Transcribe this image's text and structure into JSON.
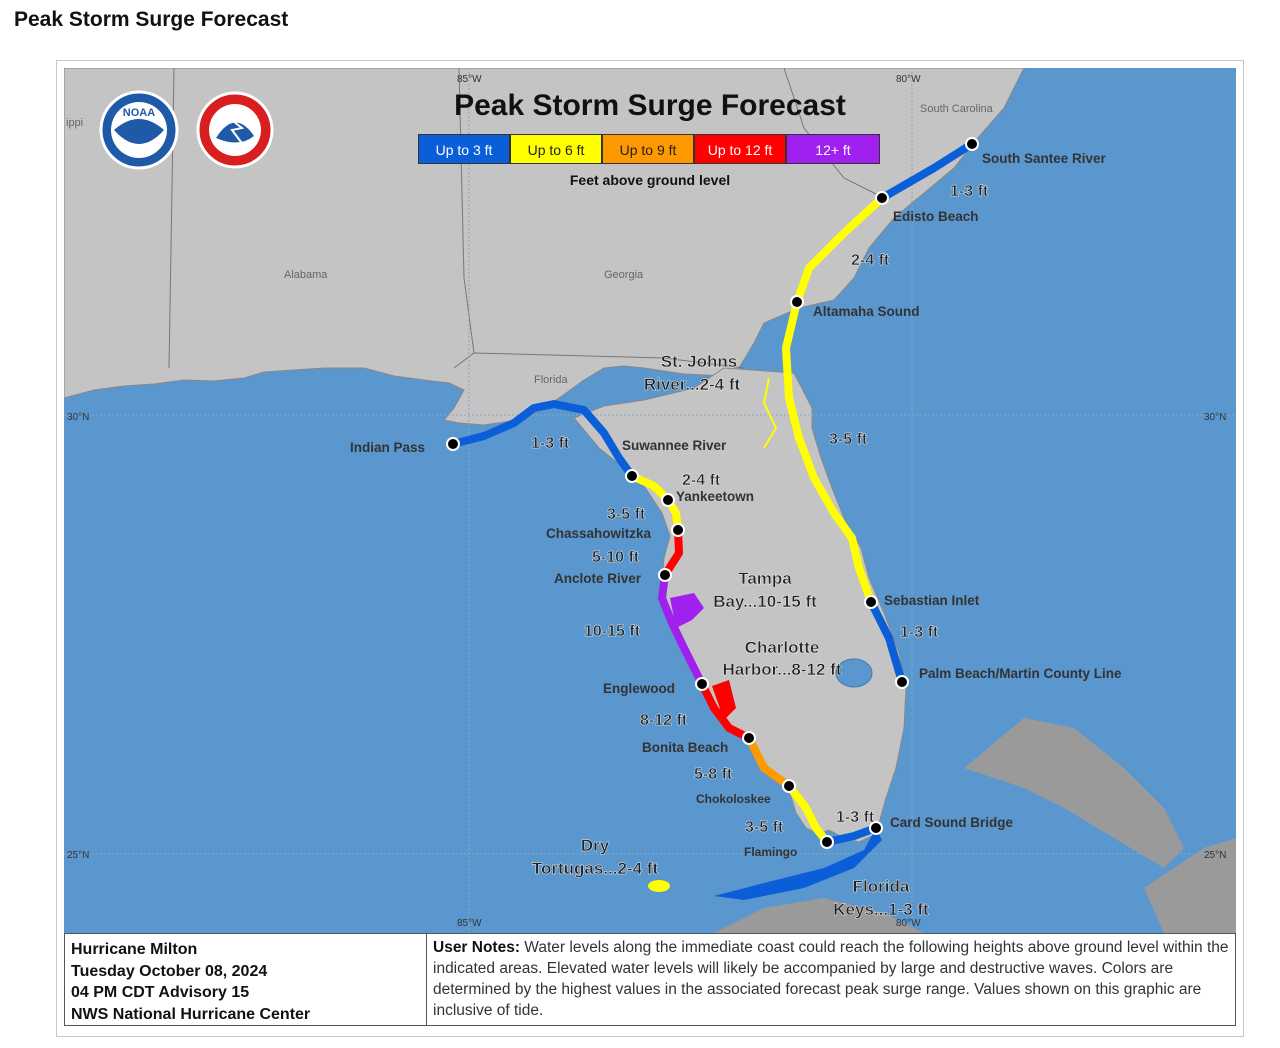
{
  "page_title": "Peak Storm Surge Forecast",
  "map": {
    "title": "Peak Storm Surge Forecast",
    "logos": [
      "noaa-logo",
      "nws-logo"
    ],
    "logo_text": {
      "noaa": "NOAA",
      "nws": "NATIONAL WEATHER SERVICE"
    },
    "legend": {
      "items": [
        {
          "label": "Up to 3 ft",
          "color": "#0a5fd9"
        },
        {
          "label": "Up to 6 ft",
          "color": "#ffff00"
        },
        {
          "label": "Up to 9 ft",
          "color": "#ff9900"
        },
        {
          "label": "Up to 12 ft",
          "color": "#ff0000"
        },
        {
          "label": "12+ ft",
          "color": "#a020f0"
        }
      ],
      "caption": "Feet above ground level"
    },
    "grid_labels": [
      "85°W",
      "80°W",
      "30°N",
      "30°N",
      "25°N",
      "25°N",
      "85°W",
      "80°W"
    ],
    "region_labels": [
      "Alabama",
      "Georgia",
      "Florida",
      "South Carolina",
      "ippi"
    ],
    "points": [
      "South Santee River",
      "Edisto Beach",
      "Altamaha Sound",
      "Sebastian Inlet",
      "Palm Beach/Martin County Line",
      "Card Sound Bridge",
      "Flamingo",
      "Chokoloskee",
      "Bonita Beach",
      "Englewood",
      "Anclote River",
      "Chassahowitzka",
      "Yankeetown",
      "Suwannee River",
      "Indian Pass"
    ],
    "surge_labels": [
      "1-3 ft",
      "2-4 ft",
      "3-5 ft",
      "1-3 ft",
      "1-3 ft",
      "3-5 ft",
      "5-8 ft",
      "8-12 ft",
      "10-15 ft",
      "5-10 ft",
      "3-5 ft",
      "2-4 ft",
      "1-3 ft"
    ],
    "area_labels": {
      "st_johns_1": "St. Johns",
      "st_johns_2": "River...2-4 ft",
      "tampa_1": "Tampa",
      "tampa_2": "Bay...10-15 ft",
      "charlotte_1": "Charlotte",
      "charlotte_2": "Harbor...8-12 ft",
      "dry_1": "Dry",
      "dry_2": "Tortugas...2-4 ft",
      "keys_1": "Florida",
      "keys_2": "Keys...1-3 ft"
    },
    "colors": {
      "ocean": "#5b97cf",
      "land_us": "#c4c4c4",
      "land_other": "#9a9a9a",
      "florida": "#c4c4c4"
    }
  },
  "info": {
    "storm_name": "Hurricane Milton",
    "date": "Tuesday October 08, 2024",
    "advisory": "04 PM CDT Advisory 15",
    "agency": "NWS National Hurricane Center",
    "notes_label": "User Notes:",
    "notes_text": " Water levels along the immediate coast could reach the following heights above ground level within the indicated areas. Elevated water levels will likely be accompanied by large and destructive waves. Colors are determined by the highest values in the associated forecast peak surge range. Values shown on this graphic are inclusive of tide."
  }
}
